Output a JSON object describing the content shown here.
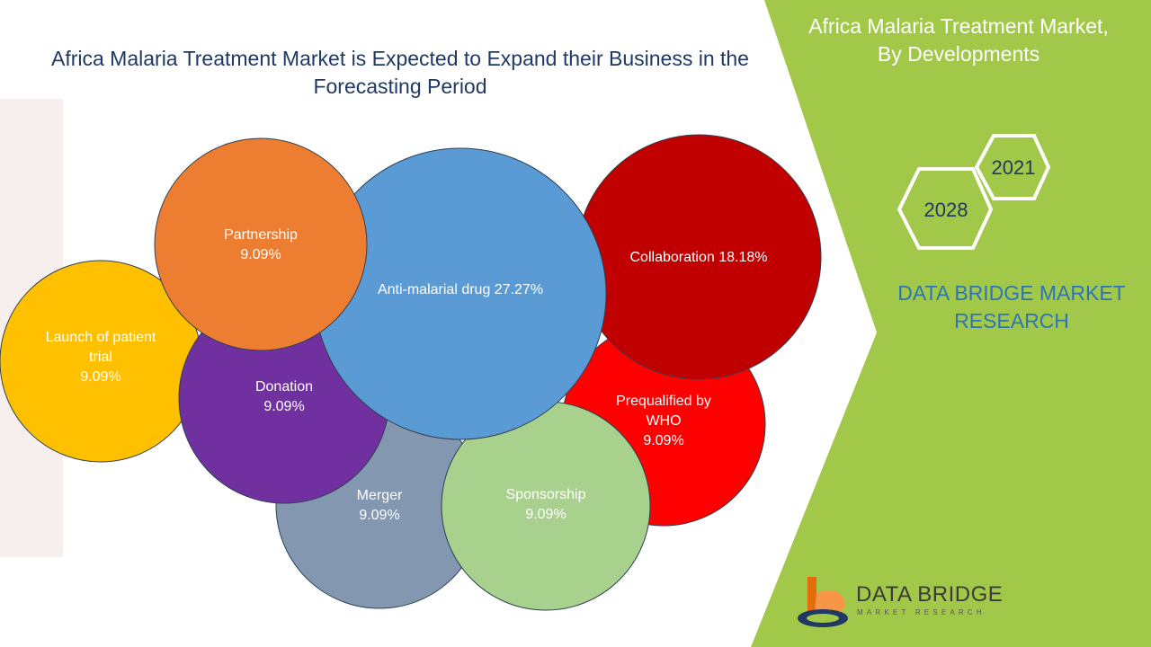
{
  "title": "Africa Malaria Treatment Market is Expected to Expand their Business in the Forecasting Period",
  "side_panel": {
    "title_line1": "Africa Malaria Treatment Market,",
    "title_line2": "By Developments",
    "year_start": "2021",
    "year_end": "2028",
    "brand_line1": "DATA BRIDGE MARKET",
    "brand_line2": "RESEARCH",
    "accent_color": "#a2c84a"
  },
  "logo": {
    "name": "DATA BRIDGE",
    "tagline": "MARKET RESEARCH",
    "icon": "data-bridge-logo-icon"
  },
  "chart_data": {
    "type": "bubble",
    "title": "Africa Malaria Treatment Market is Expected to Expand their Business in the Forecasting Period",
    "series": [
      {
        "key": "launch",
        "label_lines": [
          "Launch of patient",
          "trial",
          "9.09%"
        ],
        "category": "Launch of patient trial",
        "value": 9.09,
        "color": "#ffc000"
      },
      {
        "key": "prequalified",
        "label_lines": [
          "Prequalified by",
          "WHO",
          "9.09%"
        ],
        "category": "Prequalified by WHO",
        "value": 9.09,
        "color": "#ff0000"
      },
      {
        "key": "collaboration",
        "label_lines": [
          "Collaboration 18.18%"
        ],
        "category": "Collaboration",
        "value": 18.18,
        "color": "#c00000"
      },
      {
        "key": "merger",
        "label_lines": [
          "Merger",
          "9.09%"
        ],
        "category": "Merger",
        "value": 9.09,
        "color": "#8497b0"
      },
      {
        "key": "sponsorship",
        "label_lines": [
          "Sponsorship",
          "9.09%"
        ],
        "category": "Sponsorship",
        "value": 9.09,
        "color": "#a9d18e"
      },
      {
        "key": "donation",
        "label_lines": [
          "Donation",
          "9.09%"
        ],
        "category": "Donation",
        "value": 9.09,
        "color": "#7030a0"
      },
      {
        "key": "antimalarial",
        "label_lines": [
          "Anti-malarial drug 27.27%"
        ],
        "category": "Anti-malarial drug",
        "value": 27.27,
        "color": "#5b9bd5"
      },
      {
        "key": "partnership",
        "label_lines": [
          "Partnership",
          "9.09%"
        ],
        "category": "Partnership",
        "value": 9.09,
        "color": "#ed7d31"
      }
    ]
  }
}
